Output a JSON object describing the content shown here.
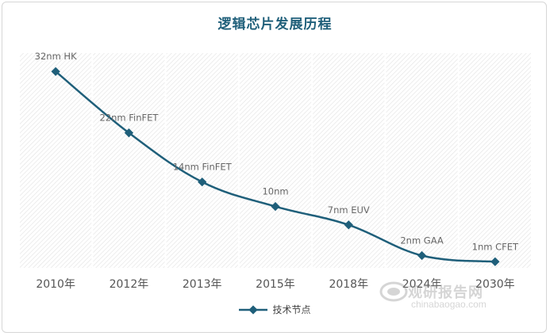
{
  "chart_data": {
    "type": "line",
    "title": "逻辑芯片发展历程",
    "categories": [
      "2010年",
      "2012年",
      "2013年",
      "2015年",
      "2018年",
      "2024年",
      "2030年"
    ],
    "series": [
      {
        "name": "技术节点",
        "color": "#1f5f7a",
        "values": [
          32,
          22,
          14,
          10,
          7,
          2,
          1
        ],
        "labels": [
          "32nm HK",
          "22nm FinFET",
          "14nm FinFET",
          "10nm",
          "7nm EUV",
          "2nm GAA",
          "1nm CFET"
        ]
      }
    ],
    "ylim": [
      0,
      35
    ],
    "grid": "vertical",
    "legend": "bottom"
  },
  "watermark": {
    "text": "观研报告网",
    "sub": "chinabaogao.com"
  }
}
